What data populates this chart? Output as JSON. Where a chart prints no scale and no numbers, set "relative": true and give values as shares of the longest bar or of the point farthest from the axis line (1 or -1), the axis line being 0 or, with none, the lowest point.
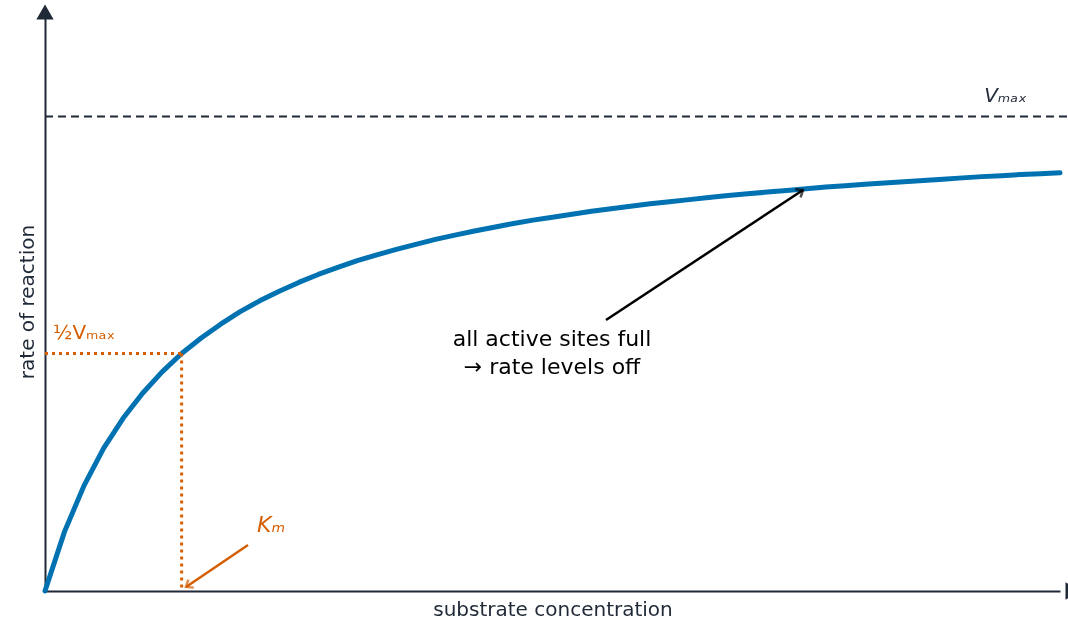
{
  "chart_data": {
    "type": "line",
    "relative": true,
    "xlabel": "substrate concentration",
    "ylabel": "rate of reaction",
    "categories": [
      null,
      null,
      null,
      null,
      null,
      null,
      null,
      null,
      null,
      null,
      null,
      null,
      null,
      null,
      null,
      null,
      null,
      null,
      null,
      null,
      null,
      null,
      null,
      null,
      null,
      null,
      null,
      null,
      null,
      null,
      null,
      null,
      null,
      null,
      null,
      null,
      null,
      null,
      null,
      null,
      null,
      null,
      null,
      null,
      null,
      null,
      null,
      null,
      null,
      null,
      null,
      null,
      null
    ],
    "series": [
      {
        "color": "#0072b2",
        "line_style": "solid",
        "values": [
          0,
          0.142,
          0.252,
          0.341,
          0.413,
          0.473,
          0.524,
          0.568,
          0.605,
          0.638,
          0.668,
          0.694,
          0.717,
          0.738,
          0.757,
          0.774,
          0.79,
          0.804,
          0.817,
          0.829,
          0.841,
          0.851,
          0.861,
          0.87,
          0.879,
          0.887,
          0.894,
          0.901,
          0.908,
          0.914,
          0.92,
          0.926,
          0.931,
          0.936,
          0.941,
          0.946,
          0.95,
          0.954,
          0.958,
          0.962,
          0.966,
          0.969,
          0.973,
          0.976,
          0.979,
          0.982,
          0.985,
          0.988,
          0.991,
          0.993,
          0.996,
          0.998,
          1
        ]
      },
      {
        "name": "½Vₘₐₓ",
        "color": "#d55e00",
        "line_style": "dotted",
        "values": [
          0.568,
          0.568,
          0.568,
          0.568,
          0.568,
          0.568,
          0.568,
          0.568,
          null,
          null,
          null,
          null,
          null,
          null,
          null,
          null,
          null,
          null,
          null,
          null,
          null,
          null,
          null,
          null,
          null,
          null,
          null,
          null,
          null,
          null,
          null,
          null,
          null,
          null,
          null,
          null,
          null,
          null,
          null,
          null,
          null,
          null,
          null,
          null,
          null,
          null,
          null,
          null,
          null,
          null,
          null,
          null,
          null
        ]
      }
    ],
    "ref_lines": [
      {
        "axis": "y",
        "value": 1.135,
        "label": "Vₘₐₓ",
        "color": "#1f2937",
        "line_style": "dashed"
      }
    ],
    "annotations": [
      "all active sites full\n→ rate levels off",
      "Kₘ"
    ]
  }
}
